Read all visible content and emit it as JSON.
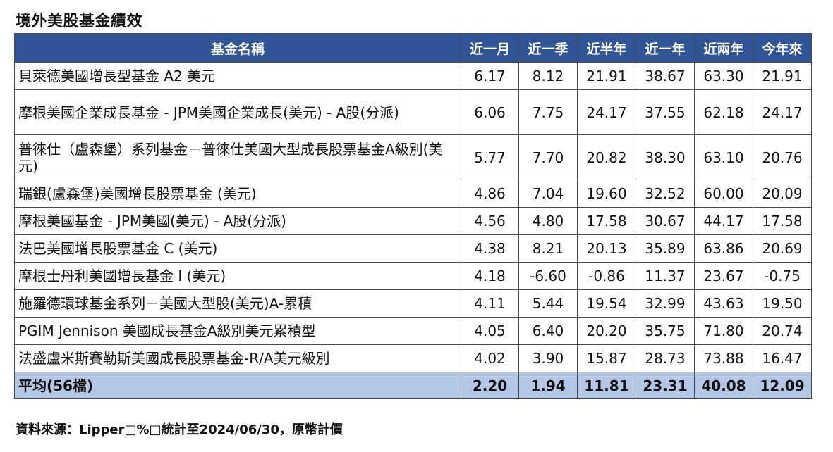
{
  "title": "境外美股基金績效",
  "columns": [
    "基金名稱",
    "近一月",
    "近一季",
    "近半年",
    "近一年",
    "近兩年",
    "今年來"
  ],
  "rows": [
    {
      "name": "貝萊德美國增長型基金 A2 美元",
      "values": [
        "6.17",
        "8.12",
        "21.91",
        "38.67",
        "63.30",
        "21.91"
      ]
    },
    {
      "name": "摩根美國企業成長基金 - JPM美國企業成長(美元) - A股(分派)",
      "values": [
        "6.06",
        "7.75",
        "24.17",
        "37.55",
        "62.18",
        "24.17"
      ]
    },
    {
      "name": "普徠仕（盧森堡）系列基金－普徠仕美國大型成長股票基金A級別(美元)",
      "values": [
        "5.77",
        "7.70",
        "20.82",
        "38.30",
        "63.10",
        "20.76"
      ]
    },
    {
      "name": "瑞銀(盧森堡)美國增長股票基金 (美元)",
      "values": [
        "4.86",
        "7.04",
        "19.60",
        "32.52",
        "60.00",
        "20.09"
      ]
    },
    {
      "name": "摩根美國基金 - JPM美國(美元) - A股(分派)",
      "values": [
        "4.56",
        "4.80",
        "17.58",
        "30.67",
        "44.17",
        "17.58"
      ]
    },
    {
      "name": "法巴美國增長股票基金 C (美元)",
      "values": [
        "4.38",
        "8.21",
        "20.13",
        "35.89",
        "63.86",
        "20.69"
      ]
    },
    {
      "name": "摩根士丹利美國增長基金 I (美元)",
      "values": [
        "4.18",
        "-6.60",
        "-0.86",
        "11.37",
        "23.67",
        "-0.75"
      ]
    },
    {
      "name": "施羅德環球基金系列－美國大型股(美元)A-累積",
      "values": [
        "4.11",
        "5.44",
        "19.54",
        "32.99",
        "43.63",
        "19.50"
      ]
    },
    {
      "name": "PGIM Jennison 美國成長基金A級別美元累積型",
      "values": [
        "4.05",
        "6.40",
        "20.20",
        "35.75",
        "71.80",
        "20.74"
      ]
    },
    {
      "name": "法盛盧米斯賽勒斯美國成長股票基金-R/A美元級別",
      "values": [
        "4.02",
        "3.90",
        "15.87",
        "28.73",
        "73.88",
        "16.47"
      ]
    }
  ],
  "average": {
    "label": "平均(56檔)",
    "values": [
      "2.20",
      "1.94",
      "11.81",
      "23.31",
      "40.08",
      "12.09"
    ]
  },
  "source": "資料來源：Lipper□%□統計至2024/06/30，原幣計價",
  "colors": {
    "header_bg": "#2f5597",
    "header_text": "#ffffff",
    "average_bg": "#b4c7e7",
    "border": "#4a4a4a"
  }
}
